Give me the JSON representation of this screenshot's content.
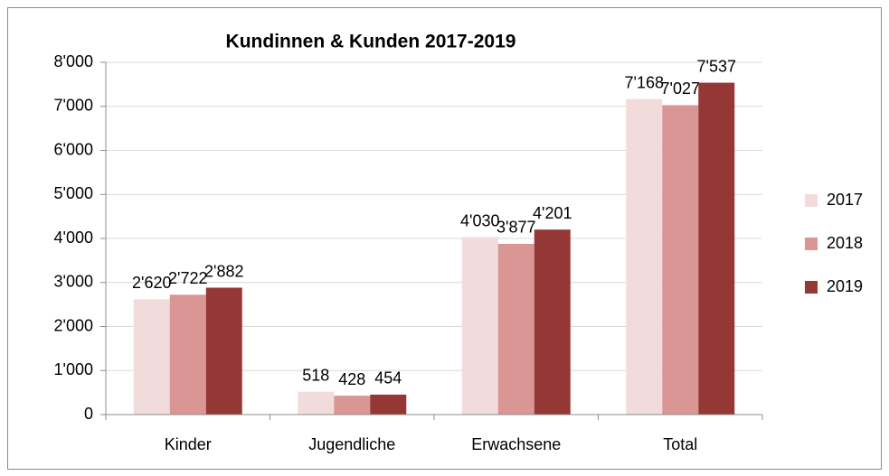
{
  "chart_data": {
    "type": "bar",
    "title": "Kundinnen & Kunden 2017-2019",
    "categories": [
      "Kinder",
      "Jugendliche",
      "Erwachsene",
      "Total"
    ],
    "series": [
      {
        "name": "2017",
        "color": "#f2dcdb",
        "values": [
          2620,
          518,
          4030,
          7168
        ],
        "value_labels": [
          "2'620",
          "518",
          "4'030",
          "7'168"
        ]
      },
      {
        "name": "2018",
        "color": "#d99694",
        "values": [
          2722,
          428,
          3877,
          7027
        ],
        "value_labels": [
          "2'722",
          "428",
          "3'877",
          "7'027"
        ]
      },
      {
        "name": "2019",
        "color": "#953735",
        "values": [
          2882,
          454,
          4201,
          7537
        ],
        "value_labels": [
          "2'882",
          "454",
          "4'201",
          "7'537"
        ]
      }
    ],
    "ylim": [
      0,
      8000
    ],
    "yticks": [
      0,
      {
        "value": 1000,
        "label": "1'000"
      },
      {
        "value": 2000,
        "label": "2'000"
      },
      {
        "value": 3000,
        "label": "3'000"
      },
      {
        "value": 4000,
        "label": "4'000"
      },
      {
        "value": 5000,
        "label": "5'000"
      },
      {
        "value": 6000,
        "label": "6'000"
      },
      {
        "value": 7000,
        "label": "7'000"
      },
      {
        "value": 8000,
        "label": "8'000"
      }
    ],
    "grid": true,
    "legend": "right"
  }
}
